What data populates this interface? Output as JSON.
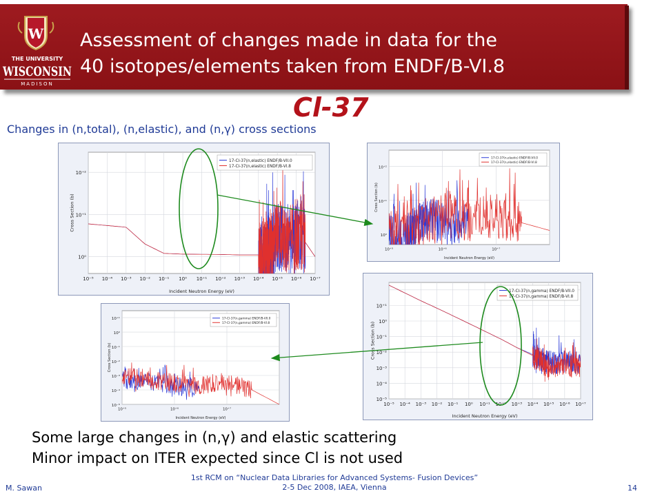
{
  "header": {
    "title_line1": "Assessment of changes made in data for the",
    "title_line2": "40 isotopes/elements taken from ENDF/B-VI.8",
    "logo_line1": "THE UNIVERSITY",
    "logo_line2": "WISCONSIN",
    "logo_line3": "MADISON",
    "logo_shield_letter": "W",
    "banner_color": "#9e1b20"
  },
  "isotope": "Cl-37",
  "subtitle": "Changes in (n,total), (n,elastic), and (n,γ) cross sections",
  "comments": {
    "line1": "Some large changes in (n,γ) and elastic scattering",
    "line2": "Minor impact on ITER expected since Cl is not used"
  },
  "footer": {
    "author": "M. Sawan",
    "event_line1": "1st RCM on “Nuclear Data Libraries for Advanced Systems- Fusion Devices”",
    "event_line2": "2-5 Dec 2008, IAEA, Vienna",
    "page_number": "14"
  },
  "colors": {
    "series_vii0": "#2a3ad8",
    "series_vi8": "#e0302e",
    "highlight_ellipse": "#1d8a1d",
    "arrow": "#1d8a1d"
  },
  "chart_data": [
    {
      "type": "line",
      "panel": "elastic-full-range",
      "ylabel": "Cross Section (b)",
      "xlabel": "Incident Neutron Energy (eV)",
      "x_scale": "log",
      "y_scale": "log",
      "xlim": [
        1e-05,
        10000000.0
      ],
      "ylim": [
        0.4,
        300
      ],
      "xticks": [
        "10⁻⁵",
        "10⁻⁴",
        "10⁻³",
        "10⁻²",
        "10⁻¹",
        "10⁰",
        "10⁺¹",
        "10⁺²",
        "10⁺³",
        "10⁺⁴",
        "10⁺⁵",
        "10⁺⁶",
        "10⁺⁷"
      ],
      "yticks": [
        "10⁰",
        "10⁺¹",
        "10⁺²"
      ],
      "legend": [
        "17-Cl-37(n,elastic) ENDF/B-VII.0",
        "17-Cl-37(n,elastic) ENDF/B-VI.8"
      ],
      "legend_position": "top-right",
      "series": [
        {
          "name": "17-Cl-37(n,elastic) ENDF/B-VII.0",
          "x": [
            1e-05,
            0.001,
            0.01,
            0.1,
            1,
            100,
            1000,
            10000,
            20000,
            30000,
            50000,
            100000,
            300000,
            1000000,
            3000000,
            10000000
          ],
          "y": [
            6,
            5,
            2,
            1.2,
            1.15,
            1.13,
            1.1,
            1.1,
            1.05,
            0.9,
            1.5,
            3,
            2,
            3,
            2.2,
            1
          ]
        },
        {
          "name": "17-Cl-37(n,elastic) ENDF/B-VI.8",
          "x": [
            1e-05,
            0.001,
            0.01,
            0.1,
            1,
            100,
            1000,
            10000,
            20000,
            30000,
            50000,
            100000,
            300000,
            1000000,
            3000000,
            10000000
          ],
          "y": [
            6,
            5,
            2,
            1.2,
            1.15,
            1.13,
            1.1,
            1.1,
            1.1,
            1.2,
            1.8,
            4,
            2.5,
            3,
            2.2,
            1
          ]
        }
      ]
    },
    {
      "type": "line",
      "panel": "elastic-zoom",
      "ylabel": "Cross Section (b)",
      "xlabel": "Incident Neutron Energy (eV)",
      "x_scale": "log",
      "y_scale": "log",
      "xlim": [
        10000,
        10000000
      ],
      "ylim": [
        0.5,
        300
      ],
      "xticks": [
        "10⁺⁵",
        "10⁺⁶",
        "10⁺⁷"
      ],
      "yticks": [
        "10⁰",
        "10⁺¹",
        "10⁺²"
      ],
      "legend": [
        "17-Cl-37(n,elastic) ENDF/B-VII.0",
        "17-Cl-37(n,elastic) ENDF/B-VI.8"
      ],
      "legend_position": "top-right",
      "series": [
        {
          "name": "17-Cl-37(n,elastic) ENDF/B-VII.0",
          "x": [
            10000,
            20000,
            30000,
            50000,
            100000,
            300000
          ],
          "y": [
            1.1,
            0.8,
            1.5,
            3,
            2,
            2
          ]
        },
        {
          "name": "17-Cl-37(n,elastic) ENDF/B-VI.8",
          "x": [
            10000,
            30000,
            100000,
            300000,
            1000000,
            3000000,
            10000000
          ],
          "y": [
            1.1,
            1.5,
            4,
            2.5,
            3.5,
            2.2,
            1.3
          ]
        }
      ]
    },
    {
      "type": "line",
      "panel": "gamma-full-range",
      "ylabel": "Cross Section (b)",
      "xlabel": "Incident Neutron Energy (eV)",
      "x_scale": "log",
      "y_scale": "log",
      "xlim": [
        1e-05,
        10000000.0
      ],
      "ylim": [
        1e-06,
        30
      ],
      "xticks": [
        "10⁻⁵",
        "10⁻⁴",
        "10⁻³",
        "10⁻²",
        "10⁻¹",
        "10⁰",
        "10⁺¹",
        "10⁺²",
        "10⁺³",
        "10⁺⁴",
        "10⁺⁵",
        "10⁺⁶",
        "10⁺⁷"
      ],
      "yticks": [
        "10⁻⁵",
        "10⁻⁴",
        "10⁻³",
        "10⁻²",
        "10⁻¹",
        "10⁰",
        "10⁺¹"
      ],
      "legend": [
        "17-Cl-37(n,gamma) ENDF/B-VII.0",
        "17-Cl-37(n,gamma) ENDF/B-VI.8"
      ],
      "legend_position": "top-right",
      "series": [
        {
          "name": "17-Cl-37(n,gamma) ENDF/B-VII.0",
          "x": [
            1e-05,
            0.001,
            0.0253,
            1,
            100,
            1000,
            10000,
            30000,
            100000,
            1000000,
            10000000
          ],
          "y": [
            20,
            2,
            0.43,
            0.07,
            0.007,
            0.002,
            0.0007,
            0.0004,
            0.0002,
            0.0003,
            0.0002
          ]
        },
        {
          "name": "17-Cl-37(n,gamma) ENDF/B-VI.8",
          "x": [
            1e-05,
            0.001,
            0.0253,
            1,
            100,
            1000,
            10000,
            30000,
            100000,
            1000000,
            10000000
          ],
          "y": [
            20,
            2,
            0.43,
            0.07,
            0.007,
            0.002,
            0.0006,
            0.0003,
            0.0001,
            0.0002,
            0.0001
          ]
        }
      ]
    },
    {
      "type": "line",
      "panel": "gamma-zoom",
      "ylabel": "Cross Section (b)",
      "xlabel": "Incident Neutron Energy (eV)",
      "x_scale": "log",
      "y_scale": "log",
      "xlim": [
        10000,
        10000000
      ],
      "ylim": [
        1e-05,
        30
      ],
      "xticks": [
        "10⁺⁵",
        "10⁺⁶",
        "10⁺⁷"
      ],
      "yticks": [
        "10⁻⁵",
        "10⁻⁴",
        "10⁻³",
        "10⁻²",
        "10⁻¹",
        "10⁰",
        "10⁺¹"
      ],
      "legend": [
        "17-Cl-37(n,gamma) ENDF/B-VII.0",
        "17-Cl-37(n,gamma) ENDF/B-VI.8"
      ],
      "legend_position": "top-right",
      "series": [
        {
          "name": "17-Cl-37(n,gamma) ENDF/B-VII.0",
          "x": [
            10000,
            30000,
            100000,
            300000
          ],
          "y": [
            0.0006,
            0.0004,
            0.0002,
            0.0001
          ]
        },
        {
          "name": "17-Cl-37(n,gamma) ENDF/B-VI.8",
          "x": [
            10000,
            30000,
            100000,
            300000,
            1000000,
            3000000,
            10000000
          ],
          "y": [
            0.001,
            0.0005,
            0.0003,
            0.0002,
            0.0004,
            0.0001,
            1e-05
          ]
        }
      ]
    }
  ]
}
